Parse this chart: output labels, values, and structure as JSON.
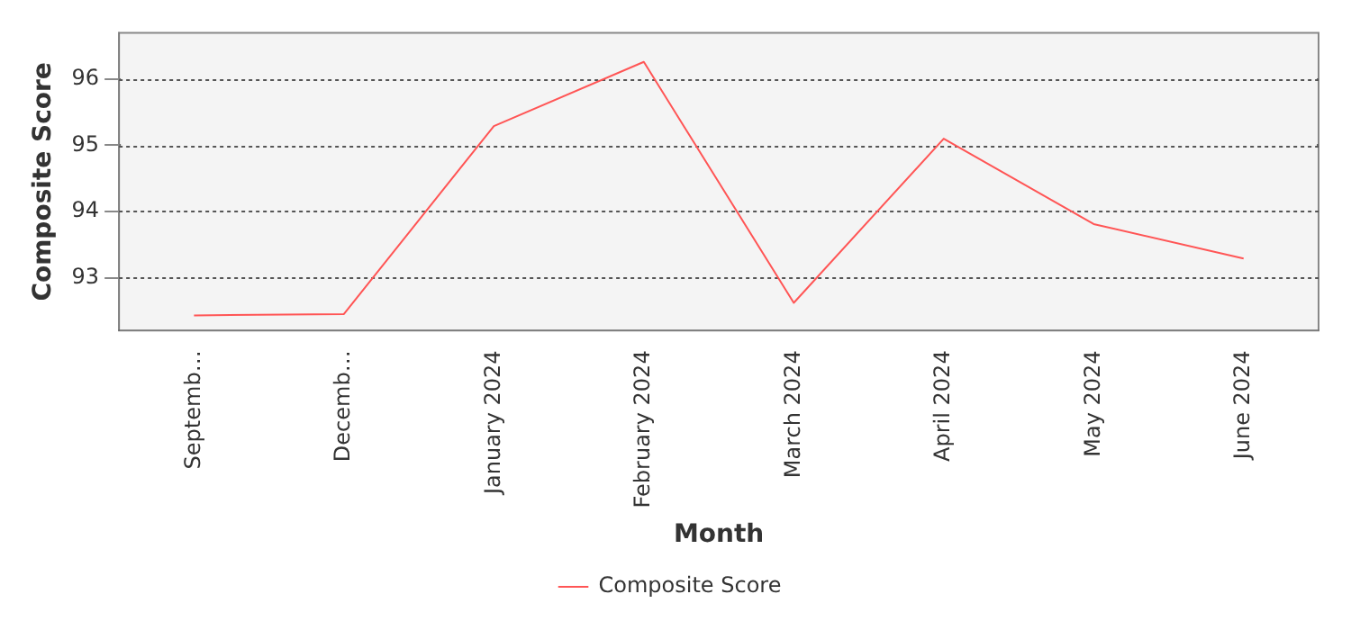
{
  "chart_data": {
    "type": "line",
    "xlabel": "Month",
    "ylabel": "Composite Score",
    "categories": [
      "Septemb…",
      "Decemb…",
      "January 2024",
      "February 2024",
      "March 2024",
      "April 2024",
      "May 2024",
      "June 2024"
    ],
    "series": [
      {
        "name": "Composite Score",
        "color": "#ff5555",
        "values": [
          92.43,
          92.45,
          95.29,
          96.26,
          92.62,
          95.1,
          93.81,
          93.29
        ]
      }
    ],
    "ylim": [
      92.2,
      96.7
    ],
    "yticks": [
      93,
      94,
      95,
      96
    ],
    "grid": "y",
    "legend": "bottom",
    "marker": "none",
    "line_style": "solid"
  }
}
